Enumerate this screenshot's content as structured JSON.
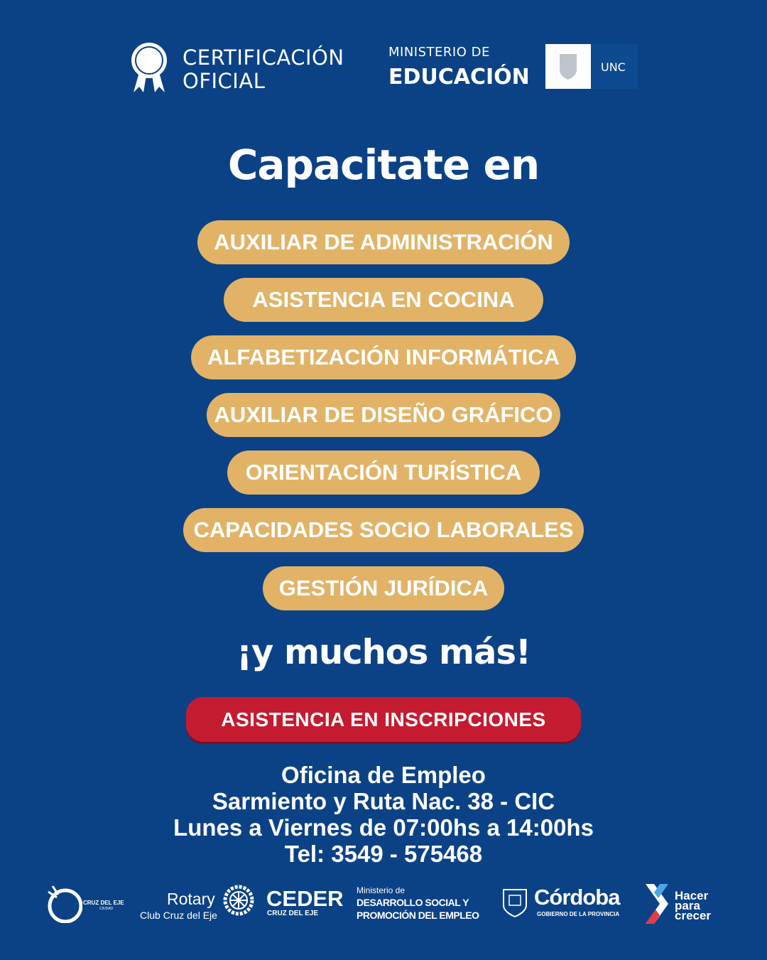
{
  "header": {
    "certification": [
      "CERTIFICACIÓN",
      "OFICIAL"
    ],
    "ministry_small": "MINISTERIO DE",
    "ministry_big": "EDUCACIÓN",
    "unc": "UNC"
  },
  "headline": "Capacitate en",
  "courses": [
    {
      "label": "AUXILIAR DE ADMINISTRACIÓN"
    },
    {
      "label": "ASISTENCIA EN COCINA"
    },
    {
      "label": "ALFABETIZACIÓN INFORMÁTICA"
    },
    {
      "label": "AUXILIAR DE DISEÑO GRÁFICO"
    },
    {
      "label": "ORIENTACIÓN TURÍSTICA"
    },
    {
      "label": "CAPACIDADES SOCIO LABORALES"
    },
    {
      "label": "GESTIÓN JURÍDICA"
    }
  ],
  "more": "¡y muchos más!",
  "cta": "ASISTENCIA EN INSCRIPCIONES",
  "info": [
    "Oficina de Empleo",
    "Sarmiento y Ruta Nac. 38 - CIC",
    "Lunes a Viernes de 07:00hs a 14:00hs",
    "Tel: 3549 - 575468"
  ],
  "footer": {
    "cruz": "CRUZ DEL EJE",
    "cruz_sub": "CIUDAD",
    "rotary": "Rotary",
    "rotary_sub": "Club Cruz del Eje",
    "ceder": "CEDER",
    "ceder_sub": "CRUZ DEL EJE",
    "min_small": "Ministerio de",
    "min_l1": "DESARROLLO SOCIAL Y",
    "min_l2": "PROMOCIÓN DEL EMPLEO",
    "cordoba": "Córdoba",
    "cordoba_sub": "GOBIERNO DE LA PROVINCIA",
    "hacer": [
      "Hacer",
      "para",
      "crecer"
    ]
  },
  "colors": {
    "background": "#0b4285",
    "pill": "#e2b367",
    "cta": "#c51b30"
  }
}
